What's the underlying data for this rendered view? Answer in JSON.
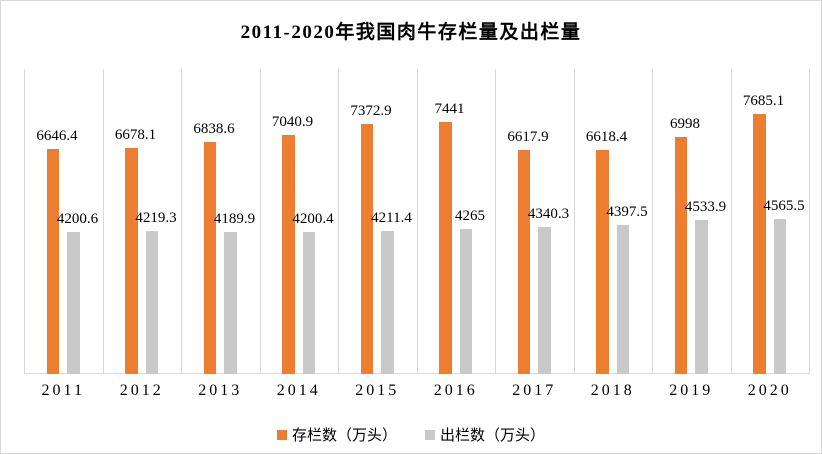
{
  "window": {
    "background_color": "#ffffff",
    "border_color": "#d9d9d9"
  },
  "chart_data": {
    "type": "bar",
    "title": "2011-2020年我国肉牛存栏量及出栏量",
    "categories": [
      "2011",
      "2012",
      "2013",
      "2014",
      "2015",
      "2016",
      "2017",
      "2018",
      "2019",
      "2020"
    ],
    "series": [
      {
        "name": "存栏数（万头）",
        "color": "#ED7D31",
        "values": [
          6646.4,
          6678.1,
          6838.6,
          7040.9,
          7372.9,
          7441,
          6617.9,
          6618.4,
          6998,
          7685.1
        ]
      },
      {
        "name": "出栏数（万头）",
        "color": "#C9C9C9",
        "values": [
          4200.6,
          4219.3,
          4189.9,
          4200.4,
          4211.4,
          4265,
          4340.3,
          4397.5,
          4533.9,
          4565.5
        ]
      }
    ],
    "xlabel": "",
    "ylabel": "",
    "ylim": [
      0,
      9000
    ],
    "y_axis_visible": false,
    "grid": "vertical-category-boundaries",
    "gridline_color": "#D9D9D9",
    "axis_line_color": "#D9D9D9",
    "data_labels": "all-values-shown-above-bars",
    "legend_position": "bottom-center"
  }
}
